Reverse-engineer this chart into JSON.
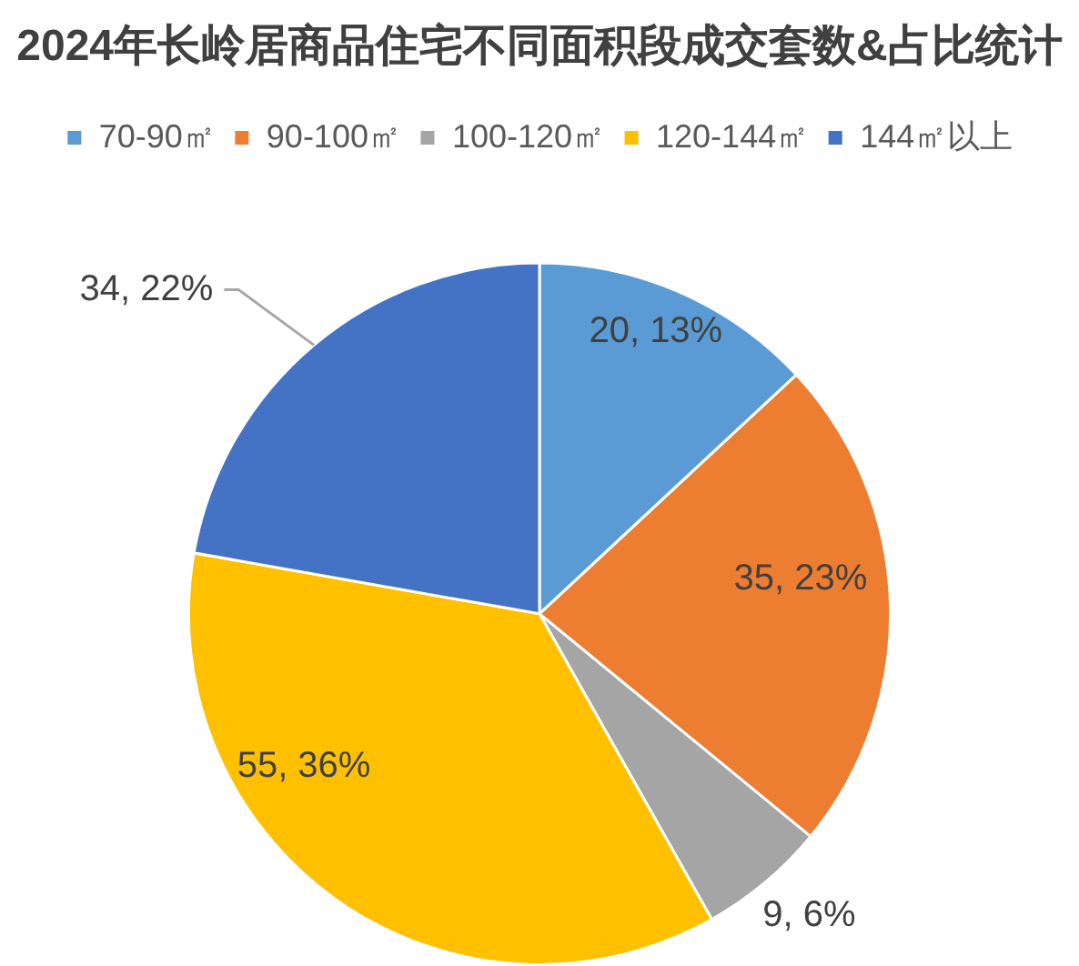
{
  "chart_data": {
    "type": "pie",
    "title": "2024年长岭居商品住宅不同面积段成交套数&占比统计",
    "categories": [
      "70-90㎡",
      "90-100㎡",
      "100-120㎡",
      "120-144㎡",
      "144㎡以上"
    ],
    "values": [
      20,
      35,
      9,
      55,
      34
    ],
    "colors": [
      "#5b9bd5",
      "#ed7d31",
      "#a5a5a5",
      "#ffc000",
      "#4472c4"
    ],
    "value_labels": [
      "20, 13%",
      "35, 23%",
      "9, 6%",
      "55, 36%",
      "34, 22%"
    ],
    "legend": "top"
  }
}
